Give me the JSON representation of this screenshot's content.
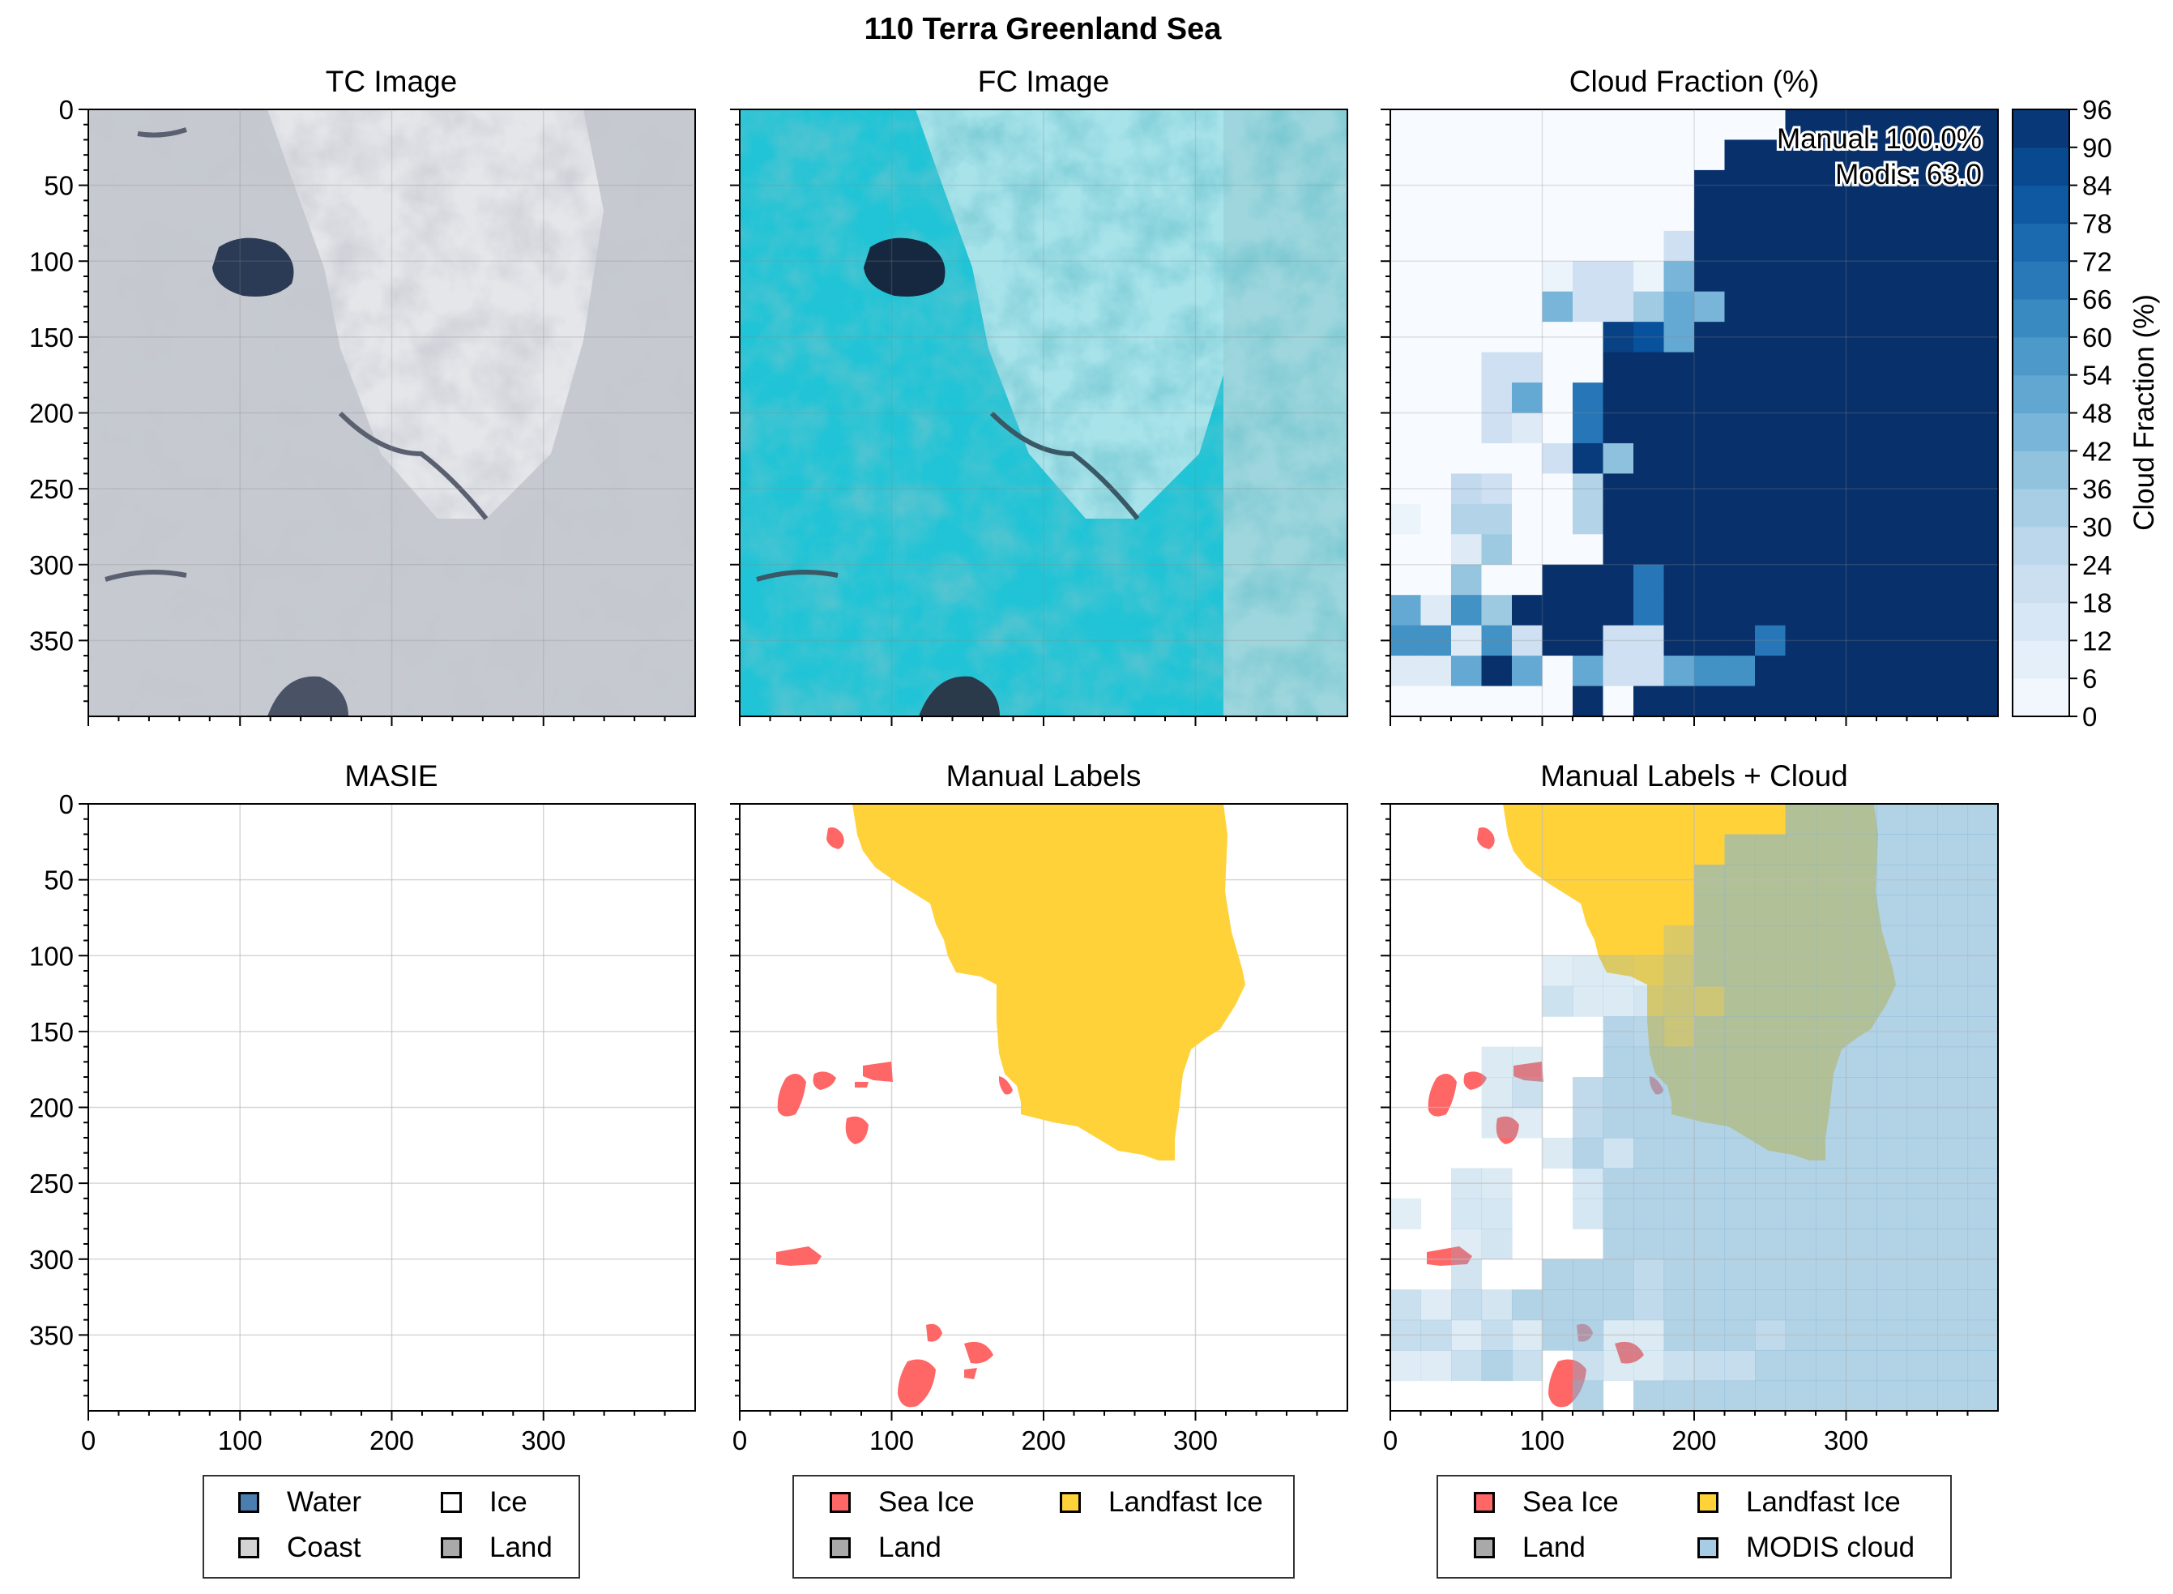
{
  "figure": {
    "title": "110 Terra Greenland Sea"
  },
  "panels": {
    "tc": {
      "title": "TC Image"
    },
    "fc": {
      "title": "FC Image"
    },
    "cloud": {
      "title": "Cloud Fraction (%)",
      "annotation_manual": "Manual: 100.0%",
      "annotation_modis": "Modis: 63.0",
      "colorbar_label": "Cloud Fraction (%)"
    },
    "masie": {
      "title": "MASIE"
    },
    "manual": {
      "title": "Manual Labels"
    },
    "manual_cloud": {
      "title": "Manual Labels + Cloud"
    }
  },
  "legends": {
    "masie": [
      {
        "label": "Water",
        "color": "#4a7db0"
      },
      {
        "label": "Ice",
        "color": "#ffffff"
      },
      {
        "label": "Coast",
        "color": "#d3d3d3"
      },
      {
        "label": "Land",
        "color": "#a9a9a9"
      }
    ],
    "manual": [
      {
        "label": "Sea Ice",
        "color": "#ff6666"
      },
      {
        "label": "Landfast Ice",
        "color": "#ffd23a"
      },
      {
        "label": "Land",
        "color": "#a9a9a9"
      }
    ],
    "manual_cloud": [
      {
        "label": "Sea Ice",
        "color": "#ff6666"
      },
      {
        "label": "Landfast Ice",
        "color": "#ffd23a"
      },
      {
        "label": "Land",
        "color": "#a9a9a9"
      },
      {
        "label": "MODIS cloud",
        "color": "#a6cde3"
      }
    ]
  },
  "chart_data": {
    "type": "heatmap",
    "title": "110 Terra Greenland Sea",
    "xlim": [
      0,
      400
    ],
    "ylim": [
      400,
      0
    ],
    "x_ticks": [
      0,
      100,
      200,
      300
    ],
    "y_ticks": [
      0,
      50,
      100,
      150,
      200,
      250,
      300,
      350
    ],
    "grid": true,
    "colorbar": {
      "label": "Cloud Fraction (%)",
      "range": [
        0,
        96
      ],
      "ticks": [
        0,
        6,
        12,
        18,
        24,
        30,
        36,
        42,
        48,
        54,
        60,
        66,
        72,
        78,
        84,
        90,
        96
      ],
      "colormap": "Blues"
    },
    "cloud_fraction_grid": {
      "cell_size": 20,
      "values": [
        [
          0,
          0,
          0,
          0,
          0,
          0,
          0,
          0,
          0,
          0,
          0,
          0,
          0,
          96,
          96,
          96,
          96,
          96,
          96,
          96
        ],
        [
          0,
          0,
          0,
          0,
          0,
          0,
          0,
          0,
          0,
          0,
          0,
          96,
          96,
          96,
          96,
          96,
          96,
          96,
          96,
          96
        ],
        [
          0,
          0,
          0,
          0,
          0,
          0,
          0,
          0,
          0,
          0,
          96,
          96,
          96,
          96,
          96,
          96,
          96,
          96,
          96,
          96
        ],
        [
          0,
          0,
          0,
          0,
          0,
          0,
          0,
          0,
          0,
          0,
          96,
          96,
          96,
          96,
          96,
          96,
          96,
          96,
          96,
          96
        ],
        [
          0,
          0,
          0,
          0,
          0,
          0,
          0,
          0,
          0,
          20,
          96,
          96,
          96,
          96,
          96,
          96,
          96,
          96,
          96,
          96
        ],
        [
          0,
          0,
          0,
          0,
          0,
          6,
          20,
          20,
          6,
          45,
          96,
          96,
          96,
          96,
          96,
          96,
          96,
          96,
          96,
          96
        ],
        [
          0,
          0,
          0,
          0,
          0,
          45,
          20,
          20,
          35,
          50,
          45,
          96,
          96,
          96,
          96,
          96,
          96,
          96,
          96,
          96
        ],
        [
          0,
          0,
          0,
          0,
          0,
          0,
          0,
          90,
          84,
          50,
          96,
          96,
          96,
          96,
          96,
          96,
          96,
          96,
          96,
          96
        ],
        [
          0,
          0,
          0,
          20,
          20,
          0,
          0,
          96,
          96,
          96,
          96,
          96,
          96,
          96,
          96,
          96,
          96,
          96,
          96,
          96
        ],
        [
          0,
          0,
          0,
          20,
          50,
          0,
          70,
          96,
          96,
          96,
          96,
          96,
          96,
          96,
          96,
          96,
          96,
          96,
          96,
          96
        ],
        [
          0,
          0,
          0,
          20,
          12,
          0,
          70,
          96,
          96,
          96,
          96,
          96,
          96,
          96,
          96,
          96,
          96,
          96,
          96,
          96
        ],
        [
          0,
          0,
          0,
          0,
          0,
          20,
          92,
          40,
          96,
          96,
          96,
          96,
          96,
          96,
          96,
          96,
          96,
          96,
          96,
          96
        ],
        [
          0,
          0,
          25,
          20,
          0,
          0,
          30,
          96,
          96,
          96,
          96,
          96,
          96,
          96,
          96,
          96,
          96,
          96,
          96,
          96
        ],
        [
          6,
          0,
          30,
          30,
          0,
          0,
          30,
          96,
          96,
          96,
          96,
          96,
          96,
          96,
          96,
          96,
          96,
          96,
          96,
          96
        ],
        [
          0,
          0,
          12,
          36,
          0,
          0,
          0,
          96,
          96,
          96,
          96,
          96,
          96,
          96,
          96,
          96,
          96,
          96,
          96,
          96
        ],
        [
          0,
          0,
          38,
          0,
          0,
          96,
          96,
          96,
          70,
          96,
          96,
          96,
          96,
          96,
          96,
          96,
          96,
          96,
          96,
          96
        ],
        [
          50,
          12,
          60,
          36,
          96,
          96,
          96,
          96,
          70,
          96,
          96,
          96,
          96,
          96,
          96,
          96,
          96,
          96,
          96,
          96
        ],
        [
          60,
          60,
          12,
          60,
          20,
          96,
          96,
          20,
          20,
          96,
          96,
          96,
          70,
          96,
          96,
          96,
          96,
          96,
          96,
          96
        ],
        [
          12,
          12,
          50,
          96,
          50,
          0,
          50,
          20,
          20,
          50,
          60,
          60,
          96,
          96,
          96,
          96,
          96,
          96,
          96,
          96
        ],
        [
          0,
          0,
          0,
          0,
          0,
          0,
          96,
          0,
          96,
          96,
          96,
          96,
          96,
          96,
          96,
          96,
          96,
          96,
          96,
          96
        ]
      ]
    },
    "manual_cloud_fraction_pct": 100.0,
    "modis_cloud_fraction": 63.0
  }
}
